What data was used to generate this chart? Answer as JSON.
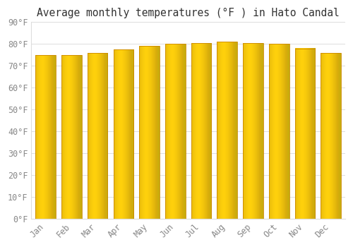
{
  "title": "Average monthly temperatures (°F ) in Hato Candal",
  "months": [
    "Jan",
    "Feb",
    "Mar",
    "Apr",
    "May",
    "Jun",
    "Jul",
    "Aug",
    "Sep",
    "Oct",
    "Nov",
    "Dec"
  ],
  "values": [
    75,
    75,
    76,
    77.5,
    79,
    80,
    80.5,
    81,
    80.5,
    80,
    78,
    76
  ],
  "bar_color_main": "#FFAA00",
  "bar_color_highlight": "#FFD070",
  "bar_color_shadow": "#E8900A",
  "bar_edge_color": "#CC8800",
  "background_color": "#FFFFFF",
  "grid_color": "#DDDDDD",
  "text_color": "#888888",
  "ylim": [
    0,
    90
  ],
  "yticks": [
    0,
    10,
    20,
    30,
    40,
    50,
    60,
    70,
    80,
    90
  ],
  "ytick_labels": [
    "0°F",
    "10°F",
    "20°F",
    "30°F",
    "40°F",
    "50°F",
    "60°F",
    "70°F",
    "80°F",
    "90°F"
  ],
  "font_family": "monospace",
  "title_fontsize": 10.5,
  "tick_fontsize": 8.5,
  "bar_width": 0.78,
  "figsize": [
    5.0,
    3.5
  ],
  "dpi": 100
}
